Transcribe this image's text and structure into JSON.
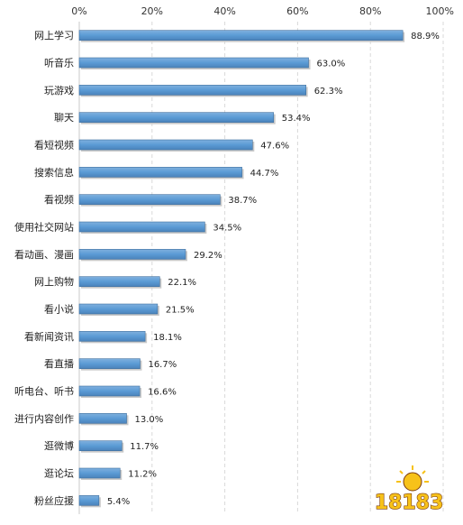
{
  "chart_data": {
    "type": "bar",
    "orientation": "horizontal",
    "categories": [
      "网上学习",
      "听音乐",
      "玩游戏",
      "聊天",
      "看短视频",
      "搜索信息",
      "看视频",
      "使用社交网站",
      "看动画、漫画",
      "网上购物",
      "看小说",
      "看新闻资讯",
      "看直播",
      "听电台、听书",
      "进行内容创作",
      "逛微博",
      "逛论坛",
      "粉丝应援"
    ],
    "values": [
      88.9,
      63.0,
      62.3,
      53.4,
      47.6,
      44.7,
      38.7,
      34.5,
      29.2,
      22.1,
      21.5,
      18.1,
      16.7,
      16.6,
      13.0,
      11.7,
      11.2,
      5.4
    ],
    "value_labels": [
      "88.9%",
      "63.0%",
      "62.3%",
      "53.4%",
      "47.6%",
      "44.7%",
      "38.7%",
      "34.5%",
      "29.2%",
      "22.1%",
      "21.5%",
      "18.1%",
      "16.7%",
      "16.6%",
      "13.0%",
      "11.7%",
      "11.2%",
      "5.4%"
    ],
    "x_ticks": [
      "0%",
      "20%",
      "40%",
      "60%",
      "80%",
      "100%"
    ],
    "xlim": [
      0,
      100
    ],
    "x_axis_position": "top",
    "grid": true,
    "bar_color": "#5b9bd5",
    "title": "",
    "xlabel": "",
    "ylabel": ""
  },
  "watermark": {
    "text": "18183",
    "colors": {
      "fill": "#f7c21a",
      "outline": "#7a3b10"
    }
  }
}
